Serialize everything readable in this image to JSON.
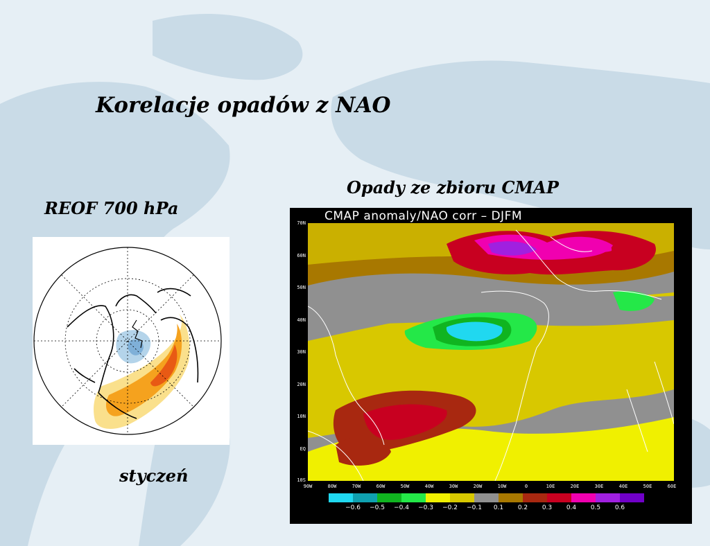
{
  "slide": {
    "title": "Korelacje opadów z NAO",
    "left_label": "REOF 700 hPa",
    "right_label": "Opady ze zbioru CMAP",
    "month": "styczeń"
  },
  "map": {
    "title": "CMAP anomaly/NAO corr – DJFM",
    "lat_labels": [
      "70N",
      "60N",
      "50N",
      "40N",
      "30N",
      "20N",
      "10N",
      "EQ",
      "10S"
    ],
    "lon_labels": [
      "90W",
      "80W",
      "70W",
      "60W",
      "50W",
      "40W",
      "30W",
      "20W",
      "10W",
      "0",
      "10E",
      "20E",
      "30E",
      "40E",
      "50E",
      "60E"
    ],
    "colorbar_labels": [
      "−0.6",
      "−0.5",
      "−0.4",
      "−0.3",
      "−0.2",
      "−0.1",
      "0.1",
      "0.2",
      "0.3",
      "0.4",
      "0.5",
      "0.6"
    ],
    "colorbar_colors": [
      "#20d8f0",
      "#0fa0b0",
      "#10b420",
      "#24e848",
      "#f0f000",
      "#d8c800",
      "#909090",
      "#a87800",
      "#a82810",
      "#c80020",
      "#f000b0",
      "#a020e0",
      "#7000c8"
    ]
  }
}
